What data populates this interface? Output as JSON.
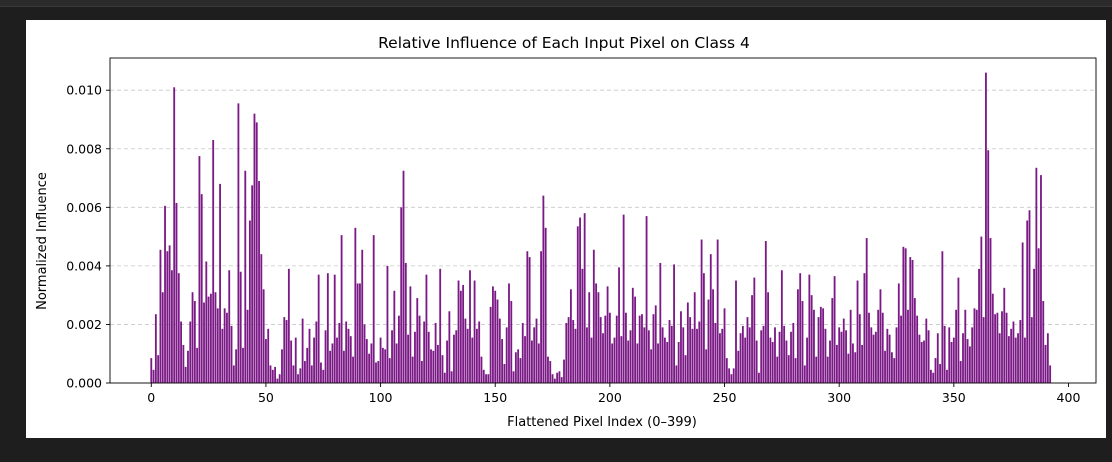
{
  "chart_data": {
    "type": "bar",
    "title": "Relative Influence of Each Input Pixel on Class 4",
    "xlabel": "Flattened Pixel Index (0–399)",
    "ylabel": "Normalized Influence",
    "xlim": [
      -18,
      412
    ],
    "ylim": [
      0,
      0.0111
    ],
    "xticks": [
      0,
      50,
      100,
      150,
      200,
      250,
      300,
      350,
      400
    ],
    "yticks": [
      0.0,
      0.002,
      0.004,
      0.006,
      0.008,
      0.01
    ],
    "ytick_labels": [
      "0.000",
      "0.002",
      "0.004",
      "0.006",
      "0.008",
      "0.010"
    ],
    "grid": "y-dashed",
    "bar_color": "#7b1a86",
    "values": [
      0.00085,
      0.00045,
      0.00235,
      0.00095,
      0.00455,
      0.0031,
      0.00605,
      0.0045,
      0.0047,
      0.00385,
      0.0101,
      0.00615,
      0.00375,
      0.0021,
      0.0013,
      0.00055,
      0.0011,
      0.0021,
      0.0031,
      0.0028,
      0.0012,
      0.00775,
      0.00645,
      0.00275,
      0.00415,
      0.00295,
      0.00305,
      0.0083,
      0.0031,
      0.00255,
      0.0068,
      0.00185,
      0.00255,
      0.0024,
      0.00385,
      0.00195,
      0.0006,
      0.00115,
      0.00955,
      0.0038,
      0.0012,
      0.00725,
      0.0025,
      0.00555,
      0.00675,
      0.0092,
      0.0089,
      0.0069,
      0.0044,
      0.0032,
      0.0015,
      0.00185,
      0.0006,
      0.00045,
      0.00055,
      0.00015,
      0.0003,
      0.00115,
      0.00225,
      0.00215,
      0.0039,
      0.00145,
      0.0006,
      0.00155,
      0.0003,
      0.0005,
      0.0022,
      0.00075,
      0.0012,
      0.00185,
      0.0006,
      0.00155,
      0.0021,
      0.0037,
      0.0007,
      0.00045,
      0.0018,
      0.00375,
      0.0011,
      0.00135,
      0.0037,
      0.00155,
      0.00205,
      0.00505,
      0.0011,
      0.0021,
      0.00185,
      0.0016,
      0.0009,
      0.0053,
      0.0034,
      0.0034,
      0.00455,
      0.002,
      0.0015,
      0.001,
      0.00135,
      0.00505,
      0.0007,
      0.00075,
      0.00155,
      0.0012,
      0.00115,
      0.004,
      0.00085,
      0.0018,
      0.00315,
      0.00135,
      0.0023,
      0.006,
      0.00725,
      0.0041,
      0.00165,
      0.0033,
      0.0009,
      0.00175,
      0.0029,
      0.0023,
      0.00075,
      0.0021,
      0.0037,
      0.00175,
      0.00115,
      0.0011,
      0.00205,
      0.0013,
      0.0039,
      0.00095,
      0.00035,
      0.00145,
      0.00245,
      0.0004,
      0.00165,
      0.0018,
      0.0035,
      0.00315,
      0.00335,
      0.0022,
      0.00185,
      0.00385,
      0.00155,
      0.0035,
      0.00185,
      0.0021,
      0.0009,
      0.00045,
      0.0003,
      0.0003,
      0.0026,
      0.0033,
      0.00315,
      0.00285,
      0.0022,
      0.0015,
      0.00065,
      0.0019,
      0.0034,
      0.0028,
      0.0004,
      0.00105,
      0.00115,
      0.00085,
      0.00205,
      0.0016,
      0.0045,
      0.0043,
      0.00145,
      0.0019,
      0.0022,
      0.00135,
      0.0045,
      0.0064,
      0.0053,
      0.0009,
      0.00075,
      0.0003,
      0.00015,
      0.00035,
      0.0004,
      0.0002,
      0.0008,
      0.00205,
      0.00225,
      0.0032,
      0.00215,
      0.00185,
      0.00535,
      0.00565,
      0.0039,
      0.0058,
      0.0019,
      0.0031,
      0.00155,
      0.00455,
      0.0034,
      0.0031,
      0.00225,
      0.0017,
      0.0023,
      0.0033,
      0.0024,
      0.00135,
      0.00155,
      0.0023,
      0.00395,
      0.0016,
      0.00575,
      0.0024,
      0.00145,
      0.0018,
      0.00325,
      0.00295,
      0.00135,
      0.0023,
      0.00235,
      0.0019,
      0.0057,
      0.0018,
      0.00115,
      0.00235,
      0.00265,
      0.00135,
      0.0041,
      0.0019,
      0.00155,
      0.0014,
      0.00215,
      0.00195,
      0.00405,
      0.0006,
      0.0014,
      0.00245,
      0.0019,
      0.00095,
      0.00275,
      0.00225,
      0.00185,
      0.0031,
      0.00185,
      0.0021,
      0.0049,
      0.00375,
      0.00115,
      0.00285,
      0.0044,
      0.0032,
      0.00205,
      0.0049,
      0.0017,
      0.00185,
      0.00255,
      0.00085,
      0.0005,
      0.0003,
      0.0005,
      0.0035,
      0.0011,
      0.0017,
      0.00195,
      0.00155,
      0.00225,
      0.0019,
      0.003,
      0.0036,
      0.00145,
      0.00035,
      0.0018,
      0.00195,
      0.00485,
      0.0031,
      0.00155,
      0.0014,
      0.0019,
      0.0009,
      0.00175,
      0.00385,
      0.00195,
      0.00145,
      0.00095,
      0.00175,
      0.00205,
      0.00085,
      0.0032,
      0.00375,
      0.0028,
      0.0006,
      0.00155,
      0.0037,
      0.003,
      0.0025,
      0.0009,
      0.00225,
      0.0026,
      0.00255,
      0.00185,
      0.0009,
      0.00145,
      0.0029,
      0.00365,
      0.0013,
      0.0019,
      0.00175,
      0.0022,
      0.0018,
      0.001,
      0.0025,
      0.00135,
      0.00105,
      0.0035,
      0.00235,
      0.0013,
      0.00375,
      0.00495,
      0.0024,
      0.0019,
      0.00165,
      0.00175,
      0.0025,
      0.0032,
      0.0024,
      0.0011,
      0.00185,
      0.00165,
      0.00105,
      0.00085,
      0.0019,
      0.0034,
      0.0023,
      0.00465,
      0.0046,
      0.0025,
      0.0043,
      0.0042,
      0.0029,
      0.0023,
      0.00165,
      0.0014,
      0.00145,
      0.0022,
      0.0018,
      0.00045,
      0.00035,
      0.00085,
      0.0017,
      0.00065,
      0.0045,
      0.00195,
      0.00045,
      0.0019,
      0.0014,
      0.00155,
      0.0025,
      0.0036,
      0.00075,
      0.0017,
      0.0025,
      0.0015,
      0.00125,
      0.0019,
      0.00255,
      0.0025,
      0.0039,
      0.005,
      0.00225,
      0.0106,
      0.00795,
      0.00495,
      0.00305,
      0.00235,
      0.0024,
      0.0017,
      0.00245,
      0.00325,
      0.0024,
      0.0016,
      0.00185,
      0.0021,
      0.00155,
      0.0017,
      0.00215,
      0.0048,
      0.00155,
      0.00555,
      0.0059,
      0.00225,
      0.0039,
      0.00735,
      0.0046,
      0.0071,
      0.0028,
      0.0013,
      0.0017,
      0.0006
    ]
  }
}
